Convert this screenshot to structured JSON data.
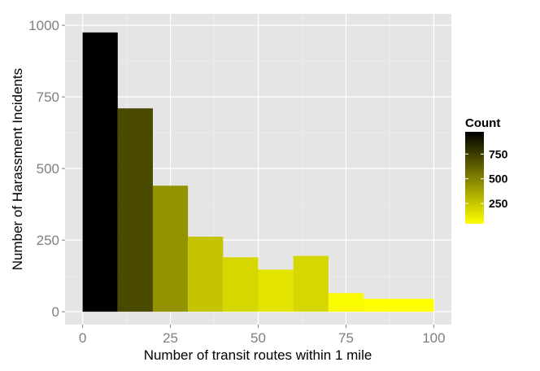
{
  "chart_data": {
    "type": "bar",
    "subtype": "histogram",
    "bins": [
      {
        "from": 0,
        "to": 10,
        "value": 975
      },
      {
        "from": 10,
        "to": 20,
        "value": 710
      },
      {
        "from": 20,
        "to": 30,
        "value": 440
      },
      {
        "from": 30,
        "to": 40,
        "value": 262
      },
      {
        "from": 40,
        "to": 50,
        "value": 190
      },
      {
        "from": 50,
        "to": 60,
        "value": 147
      },
      {
        "from": 60,
        "to": 70,
        "value": 195
      },
      {
        "from": 70,
        "to": 80,
        "value": 65
      },
      {
        "from": 80,
        "to": 100,
        "value": 45
      }
    ],
    "xlabel": "Number of transit routes within 1 mile",
    "ylabel": "Number of Harassment Incidents",
    "xlim": [
      -5,
      105
    ],
    "ylim": [
      -45,
      1040
    ],
    "x_ticks": [
      "0",
      "25",
      "50",
      "75",
      "100"
    ],
    "x_tick_values": [
      0,
      25,
      50,
      75,
      100
    ],
    "y_ticks": [
      "0",
      "250",
      "500",
      "750",
      "1000"
    ],
    "y_tick_values": [
      0,
      250,
      500,
      750,
      1000
    ],
    "grid": true,
    "panel_background": "#e5e5e5",
    "legend": {
      "title": "Count",
      "position": "right",
      "labels": [
        "750",
        "500",
        "250"
      ],
      "label_values": [
        750,
        500,
        250
      ],
      "range": [
        45,
        975
      ],
      "color_low": "#ffff00",
      "color_high": "#000000"
    }
  }
}
